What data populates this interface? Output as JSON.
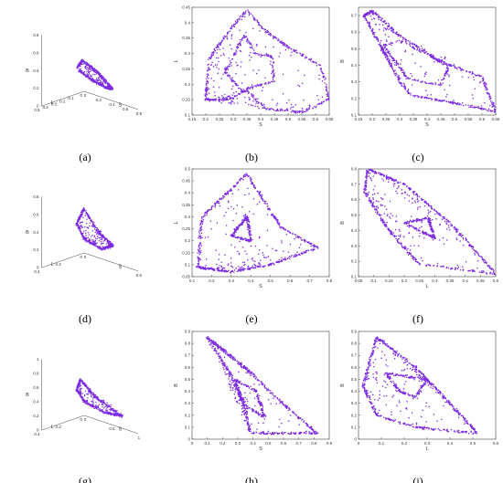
{
  "figure": {
    "point_color": "#7B2BE2",
    "captions": [
      "(a)",
      "(b)",
      "(c)",
      "(d)",
      "(e)",
      "(f)",
      "(g)",
      "(h)",
      "(i)"
    ]
  },
  "chart_data": [
    {
      "panel": "a",
      "type": "scatter",
      "projection": "3d",
      "axes": {
        "x": "S",
        "y": "L",
        "z": "B"
      },
      "x_ticks": [
        "0",
        "0.2",
        "0.4",
        "0.6",
        "0.8"
      ],
      "y_ticks": [
        "0",
        "0.1",
        "0.2",
        "0.3",
        "0.4",
        "0.5"
      ],
      "z_ticks": [
        "0",
        "0.2",
        "0.4",
        "0.6",
        "0.8"
      ],
      "outline": [
        [
          0.15,
          0.35,
          0.45
        ],
        [
          0.3,
          0.42,
          0.6
        ],
        [
          0.5,
          0.3,
          0.45
        ],
        [
          0.62,
          0.12,
          0.22
        ],
        [
          0.5,
          0.12,
          0.2
        ],
        [
          0.3,
          0.2,
          0.28
        ],
        [
          0.17,
          0.33,
          0.4
        ]
      ]
    },
    {
      "panel": "b",
      "type": "scatter",
      "xlabel": "S",
      "ylabel": "L",
      "xlim": [
        0.15,
        0.65
      ],
      "ylim": [
        0.1,
        0.45
      ],
      "x_ticks": [
        "0.15",
        "0.2",
        "0.25",
        "0.3",
        "0.35",
        "0.4",
        "0.45",
        "0.5",
        "0.55",
        "0.6",
        "0.65"
      ],
      "y_ticks": [
        "0.1",
        "0.15",
        "0.2",
        "0.25",
        "0.3",
        "0.35",
        "0.4",
        "0.45"
      ],
      "outline": [
        [
          0.2,
          0.15
        ],
        [
          0.21,
          0.28
        ],
        [
          0.29,
          0.38
        ],
        [
          0.35,
          0.44
        ],
        [
          0.41,
          0.38
        ],
        [
          0.5,
          0.32
        ],
        [
          0.62,
          0.26
        ],
        [
          0.65,
          0.15
        ],
        [
          0.55,
          0.11
        ],
        [
          0.42,
          0.12
        ],
        [
          0.35,
          0.18
        ],
        [
          0.28,
          0.15
        ],
        [
          0.2,
          0.15
        ]
      ],
      "inner": [
        [
          0.27,
          0.24
        ],
        [
          0.34,
          0.36
        ],
        [
          0.38,
          0.3
        ],
        [
          0.44,
          0.29
        ],
        [
          0.45,
          0.21
        ],
        [
          0.33,
          0.18
        ],
        [
          0.27,
          0.24
        ]
      ]
    },
    {
      "panel": "c",
      "type": "scatter",
      "xlabel": "S",
      "ylabel": "B",
      "xlim": [
        0.15,
        0.65
      ],
      "ylim": [
        0.1,
        0.75
      ],
      "x_ticks": [
        "0.15",
        "0.2",
        "0.25",
        "0.3",
        "0.35",
        "0.4",
        "0.45",
        "0.5",
        "0.55",
        "0.6",
        "0.65"
      ],
      "y_ticks": [
        "0.1",
        "0.2",
        "0.3",
        "0.4",
        "0.5",
        "0.6",
        "0.7"
      ],
      "outline": [
        [
          0.17,
          0.7
        ],
        [
          0.22,
          0.55
        ],
        [
          0.3,
          0.3
        ],
        [
          0.34,
          0.22
        ],
        [
          0.48,
          0.18
        ],
        [
          0.65,
          0.12
        ],
        [
          0.6,
          0.33
        ],
        [
          0.45,
          0.42
        ],
        [
          0.3,
          0.58
        ],
        [
          0.2,
          0.73
        ],
        [
          0.17,
          0.7
        ]
      ],
      "inner": [
        [
          0.24,
          0.52
        ],
        [
          0.33,
          0.32
        ],
        [
          0.45,
          0.28
        ],
        [
          0.48,
          0.4
        ],
        [
          0.3,
          0.55
        ],
        [
          0.24,
          0.52
        ]
      ]
    },
    {
      "panel": "d",
      "type": "scatter",
      "projection": "3d",
      "axes": {
        "x": "S",
        "y": "L",
        "z": "B"
      },
      "x_ticks": [
        "0",
        "0.5"
      ],
      "y_ticks": [
        "0",
        "0.2",
        "0.4"
      ],
      "z_ticks": [
        "0",
        "0.2",
        "0.4",
        "0.6",
        "0.8"
      ],
      "outline": [
        [
          0.1,
          0.3,
          0.5
        ],
        [
          0.35,
          0.45,
          0.8
        ],
        [
          0.55,
          0.35,
          0.5
        ],
        [
          0.65,
          0.15,
          0.3
        ],
        [
          0.45,
          0.15,
          0.2
        ],
        [
          0.2,
          0.25,
          0.3
        ],
        [
          0.1,
          0.3,
          0.5
        ]
      ]
    },
    {
      "panel": "e",
      "type": "scatter",
      "xlabel": "S",
      "ylabel": "L",
      "xlim": [
        0.1,
        0.8
      ],
      "ylim": [
        0.05,
        0.5
      ],
      "x_ticks": [
        "0.1",
        "0.2",
        "0.3",
        "0.4",
        "0.5",
        "0.6",
        "0.7",
        "0.8"
      ],
      "y_ticks": [
        "0.05",
        "0.1",
        "0.15",
        "0.2",
        "0.25",
        "0.3",
        "0.35",
        "0.4",
        "0.45",
        "0.5"
      ],
      "outline": [
        [
          0.13,
          0.09
        ],
        [
          0.15,
          0.3
        ],
        [
          0.38,
          0.48
        ],
        [
          0.55,
          0.26
        ],
        [
          0.74,
          0.17
        ],
        [
          0.5,
          0.1
        ],
        [
          0.3,
          0.07
        ],
        [
          0.13,
          0.09
        ]
      ],
      "inner": [
        [
          0.3,
          0.22
        ],
        [
          0.38,
          0.3
        ],
        [
          0.4,
          0.2
        ],
        [
          0.3,
          0.22
        ]
      ]
    },
    {
      "panel": "f",
      "type": "scatter",
      "xlabel": "L",
      "ylabel": "B",
      "xlim": [
        0.05,
        0.5
      ],
      "ylim": [
        0.1,
        0.8
      ],
      "x_ticks": [
        "0.05",
        "0.1",
        "0.15",
        "0.2",
        "0.25",
        "0.3",
        "0.35",
        "0.4",
        "0.45",
        "0.5"
      ],
      "y_ticks": [
        "0.1",
        "0.2",
        "0.3",
        "0.4",
        "0.5",
        "0.6",
        "0.7",
        "0.8"
      ],
      "outline": [
        [
          0.08,
          0.8
        ],
        [
          0.07,
          0.65
        ],
        [
          0.15,
          0.4
        ],
        [
          0.25,
          0.18
        ],
        [
          0.5,
          0.12
        ],
        [
          0.35,
          0.45
        ],
        [
          0.2,
          0.7
        ],
        [
          0.08,
          0.8
        ]
      ],
      "inner": [
        [
          0.2,
          0.45
        ],
        [
          0.28,
          0.48
        ],
        [
          0.3,
          0.35
        ],
        [
          0.2,
          0.45
        ]
      ]
    },
    {
      "panel": "g",
      "type": "scatter",
      "projection": "3d",
      "axes": {
        "x": "S",
        "y": "L",
        "z": "B"
      },
      "x_ticks": [
        "0",
        "0.5",
        "1"
      ],
      "y_ticks": [
        "0",
        "0.2",
        "0.4"
      ],
      "z_ticks": [
        "0",
        "0.2",
        "0.4",
        "0.6",
        "0.8",
        "1"
      ],
      "outline": [
        [
          0.1,
          0.3,
          0.45
        ],
        [
          0.25,
          0.4,
          0.65
        ],
        [
          0.45,
          0.32,
          0.45
        ],
        [
          0.8,
          0.12,
          0.22
        ],
        [
          0.5,
          0.15,
          0.2
        ],
        [
          0.2,
          0.25,
          0.3
        ],
        [
          0.1,
          0.3,
          0.45
        ]
      ]
    },
    {
      "panel": "h",
      "type": "scatter",
      "xlabel": "S",
      "ylabel": "B",
      "xlim": [
        0,
        0.9
      ],
      "ylim": [
        0,
        0.9
      ],
      "x_ticks": [
        "0",
        "0.1",
        "0.2",
        "0.3",
        "0.4",
        "0.5",
        "0.6",
        "0.7",
        "0.8",
        "0.9"
      ],
      "y_ticks": [
        "0",
        "0.1",
        "0.2",
        "0.3",
        "0.4",
        "0.5",
        "0.6",
        "0.7",
        "0.8",
        "0.9"
      ],
      "outline": [
        [
          0.1,
          0.85
        ],
        [
          0.25,
          0.55
        ],
        [
          0.35,
          0.25
        ],
        [
          0.38,
          0.05
        ],
        [
          0.6,
          0.05
        ],
        [
          0.82,
          0.05
        ],
        [
          0.55,
          0.35
        ],
        [
          0.35,
          0.6
        ],
        [
          0.2,
          0.75
        ],
        [
          0.1,
          0.85
        ]
      ],
      "inner": [
        [
          0.28,
          0.5
        ],
        [
          0.42,
          0.4
        ],
        [
          0.48,
          0.18
        ],
        [
          0.35,
          0.28
        ],
        [
          0.28,
          0.5
        ]
      ]
    },
    {
      "panel": "i",
      "type": "scatter",
      "xlabel": "L",
      "ylabel": "B",
      "xlim": [
        0,
        0.6
      ],
      "ylim": [
        0,
        0.9
      ],
      "x_ticks": [
        "0",
        "0.1",
        "0.2",
        "0.3",
        "0.4",
        "0.5",
        "0.6"
      ],
      "y_ticks": [
        "0",
        "0.1",
        "0.2",
        "0.3",
        "0.4",
        "0.5",
        "0.6",
        "0.7",
        "0.8",
        "0.9"
      ],
      "outline": [
        [
          0.08,
          0.85
        ],
        [
          0.02,
          0.45
        ],
        [
          0.08,
          0.2
        ],
        [
          0.25,
          0.1
        ],
        [
          0.52,
          0.05
        ],
        [
          0.4,
          0.3
        ],
        [
          0.25,
          0.6
        ],
        [
          0.08,
          0.85
        ]
      ],
      "inner": [
        [
          0.12,
          0.55
        ],
        [
          0.18,
          0.4
        ],
        [
          0.25,
          0.35
        ],
        [
          0.3,
          0.5
        ],
        [
          0.12,
          0.55
        ]
      ]
    }
  ]
}
